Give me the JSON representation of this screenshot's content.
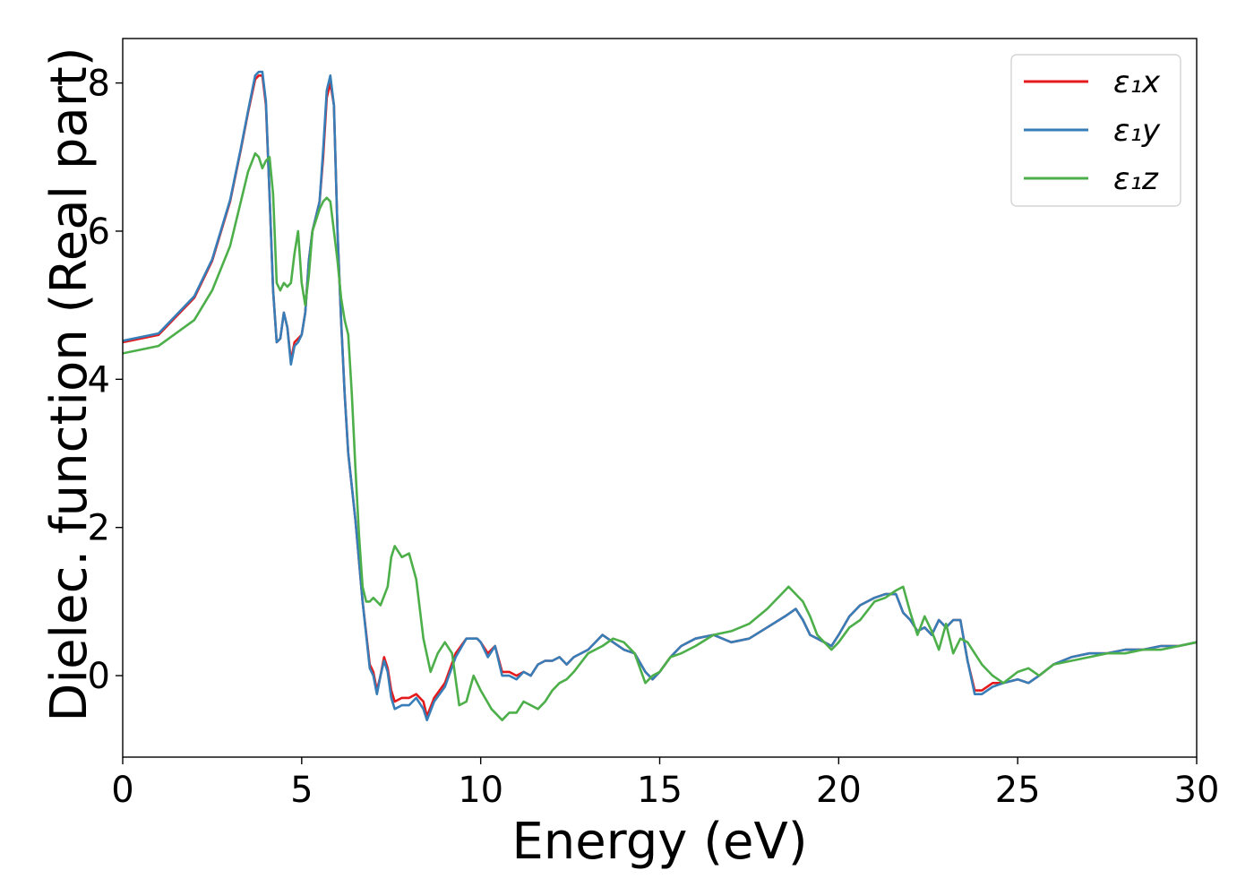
{
  "chart_data": {
    "type": "line",
    "title": "",
    "xlabel": "Energy (eV)",
    "ylabel": "Dielec. function (Real part)",
    "xlim": [
      0,
      30
    ],
    "ylim": [
      -1.1,
      8.6
    ],
    "xticks": [
      0,
      5,
      10,
      15,
      20,
      25,
      30
    ],
    "yticks": [
      0,
      2,
      4,
      6,
      8
    ],
    "grid": false,
    "legend": "top-right",
    "series": [
      {
        "name": "ε₁x",
        "color": "#e41a1c",
        "x": [
          0,
          1,
          2,
          2.5,
          3,
          3.3,
          3.5,
          3.7,
          3.8,
          3.9,
          4.0,
          4.1,
          4.2,
          4.3,
          4.4,
          4.5,
          4.6,
          4.7,
          4.8,
          4.9,
          5.0,
          5.1,
          5.2,
          5.3,
          5.5,
          5.6,
          5.7,
          5.8,
          5.9,
          6.0,
          6.1,
          6.2,
          6.3,
          6.5,
          6.7,
          6.9,
          7.0,
          7.1,
          7.2,
          7.3,
          7.4,
          7.5,
          7.6,
          7.8,
          8.0,
          8.2,
          8.4,
          8.5,
          8.7,
          9.0,
          9.3,
          9.6,
          9.9,
          10.0,
          10.2,
          10.4,
          10.6,
          10.8,
          11.0,
          11.2,
          11.4,
          11.6,
          11.8,
          12.0,
          12.2,
          12.4,
          12.6,
          13.0,
          13.4,
          13.7,
          14.0,
          14.3,
          14.6,
          14.8,
          15.0,
          15.3,
          15.6,
          16.0,
          16.5,
          17.0,
          17.5,
          18.0,
          18.5,
          18.8,
          19.0,
          19.2,
          19.4,
          19.6,
          19.8,
          20.0,
          20.3,
          20.6,
          21.0,
          21.3,
          21.6,
          21.8,
          22.0,
          22.2,
          22.4,
          22.6,
          22.8,
          23.0,
          23.2,
          23.4,
          23.6,
          23.8,
          24.0,
          24.3,
          24.6,
          25.0,
          25.3,
          25.6,
          26.0,
          26.5,
          27.0,
          27.5,
          28.0,
          28.5,
          29.0,
          29.5,
          30.0
        ],
        "y": [
          4.5,
          4.6,
          5.1,
          5.6,
          6.4,
          7.1,
          7.6,
          8.05,
          8.1,
          8.1,
          7.7,
          6.5,
          5.2,
          4.5,
          4.55,
          4.9,
          4.7,
          4.25,
          4.5,
          4.55,
          4.6,
          4.9,
          5.6,
          6.0,
          6.4,
          7.0,
          7.8,
          8.0,
          7.7,
          6.0,
          4.8,
          3.8,
          3.0,
          2.1,
          1.0,
          0.15,
          0.05,
          -0.2,
          0.0,
          0.25,
          0.1,
          -0.2,
          -0.35,
          -0.3,
          -0.3,
          -0.25,
          -0.35,
          -0.55,
          -0.3,
          -0.1,
          0.3,
          0.5,
          0.5,
          0.45,
          0.3,
          0.4,
          0.05,
          0.05,
          0.0,
          0.05,
          0.0,
          0.15,
          0.2,
          0.2,
          0.25,
          0.15,
          0.25,
          0.35,
          0.55,
          0.45,
          0.35,
          0.3,
          0.05,
          -0.05,
          0.05,
          0.25,
          0.4,
          0.5,
          0.55,
          0.45,
          0.5,
          0.65,
          0.8,
          0.9,
          0.75,
          0.55,
          0.5,
          0.45,
          0.4,
          0.55,
          0.8,
          0.95,
          1.05,
          1.1,
          1.1,
          0.85,
          0.75,
          0.6,
          0.65,
          0.55,
          0.75,
          0.65,
          0.75,
          0.75,
          0.2,
          -0.2,
          -0.2,
          -0.1,
          -0.1,
          -0.05,
          -0.1,
          0.0,
          0.15,
          0.25,
          0.3,
          0.3,
          0.35,
          0.35,
          0.4,
          0.4,
          0.45
        ]
      },
      {
        "name": "ε₁y",
        "color": "#377eb8",
        "x": [
          0,
          1,
          2,
          2.5,
          3,
          3.3,
          3.5,
          3.7,
          3.8,
          3.9,
          4.0,
          4.1,
          4.2,
          4.3,
          4.4,
          4.5,
          4.6,
          4.7,
          4.8,
          4.9,
          5.0,
          5.1,
          5.2,
          5.3,
          5.5,
          5.6,
          5.7,
          5.8,
          5.9,
          6.0,
          6.1,
          6.2,
          6.3,
          6.5,
          6.7,
          6.9,
          7.0,
          7.1,
          7.2,
          7.3,
          7.4,
          7.5,
          7.6,
          7.8,
          8.0,
          8.2,
          8.4,
          8.5,
          8.7,
          9.0,
          9.3,
          9.6,
          9.9,
          10.0,
          10.2,
          10.4,
          10.6,
          10.8,
          11.0,
          11.2,
          11.4,
          11.6,
          11.8,
          12.0,
          12.2,
          12.4,
          12.6,
          13.0,
          13.4,
          13.7,
          14.0,
          14.3,
          14.6,
          14.8,
          15.0,
          15.3,
          15.6,
          16.0,
          16.5,
          17.0,
          17.5,
          18.0,
          18.5,
          18.8,
          19.0,
          19.2,
          19.4,
          19.6,
          19.8,
          20.0,
          20.3,
          20.6,
          21.0,
          21.3,
          21.6,
          21.8,
          22.0,
          22.2,
          22.4,
          22.6,
          22.8,
          23.0,
          23.2,
          23.4,
          23.6,
          23.8,
          24.0,
          24.3,
          24.6,
          25.0,
          25.3,
          25.6,
          26.0,
          26.5,
          27.0,
          27.5,
          28.0,
          28.5,
          29.0,
          29.5,
          30.0
        ],
        "y": [
          4.52,
          4.62,
          5.12,
          5.62,
          6.42,
          7.12,
          7.62,
          8.1,
          8.15,
          8.15,
          7.75,
          6.5,
          5.2,
          4.5,
          4.55,
          4.9,
          4.7,
          4.2,
          4.45,
          4.5,
          4.6,
          4.9,
          5.6,
          6.0,
          6.4,
          7.1,
          7.9,
          8.1,
          7.7,
          6.0,
          4.8,
          3.8,
          3.0,
          2.1,
          1.0,
          0.1,
          0.0,
          -0.25,
          0.0,
          0.2,
          0.05,
          -0.3,
          -0.45,
          -0.4,
          -0.4,
          -0.3,
          -0.45,
          -0.6,
          -0.35,
          -0.15,
          0.25,
          0.5,
          0.5,
          0.45,
          0.25,
          0.4,
          0.0,
          0.0,
          -0.05,
          0.05,
          0.0,
          0.15,
          0.2,
          0.2,
          0.25,
          0.15,
          0.25,
          0.35,
          0.55,
          0.45,
          0.35,
          0.3,
          0.05,
          -0.05,
          0.05,
          0.25,
          0.4,
          0.5,
          0.55,
          0.45,
          0.5,
          0.65,
          0.8,
          0.9,
          0.75,
          0.55,
          0.5,
          0.45,
          0.4,
          0.55,
          0.8,
          0.95,
          1.05,
          1.1,
          1.1,
          0.85,
          0.75,
          0.6,
          0.65,
          0.55,
          0.75,
          0.65,
          0.75,
          0.75,
          0.2,
          -0.25,
          -0.25,
          -0.15,
          -0.1,
          -0.05,
          -0.1,
          0.0,
          0.15,
          0.25,
          0.3,
          0.3,
          0.35,
          0.35,
          0.4,
          0.4,
          0.45
        ]
      },
      {
        "name": "ε₁z",
        "color": "#4daf4a",
        "x": [
          0,
          1,
          2,
          2.5,
          3,
          3.3,
          3.5,
          3.7,
          3.8,
          3.9,
          4.0,
          4.1,
          4.2,
          4.3,
          4.4,
          4.5,
          4.6,
          4.7,
          4.8,
          4.9,
          5.0,
          5.1,
          5.2,
          5.3,
          5.5,
          5.6,
          5.7,
          5.8,
          5.9,
          6.0,
          6.1,
          6.2,
          6.3,
          6.4,
          6.5,
          6.6,
          6.7,
          6.8,
          6.9,
          7.0,
          7.2,
          7.4,
          7.5,
          7.6,
          7.8,
          8.0,
          8.2,
          8.4,
          8.6,
          8.8,
          9.0,
          9.2,
          9.4,
          9.6,
          9.8,
          10.0,
          10.3,
          10.6,
          10.8,
          11.0,
          11.2,
          11.4,
          11.6,
          11.8,
          12.0,
          12.2,
          12.4,
          12.6,
          13.0,
          13.4,
          13.7,
          14.0,
          14.3,
          14.6,
          14.8,
          15.0,
          15.3,
          15.6,
          16.0,
          16.5,
          17.0,
          17.5,
          18.0,
          18.4,
          18.6,
          18.8,
          19.0,
          19.2,
          19.4,
          19.6,
          19.8,
          20.0,
          20.3,
          20.6,
          21.0,
          21.3,
          21.6,
          21.8,
          22.0,
          22.2,
          22.4,
          22.6,
          22.8,
          23.0,
          23.2,
          23.4,
          23.6,
          23.8,
          24.0,
          24.3,
          24.6,
          25.0,
          25.3,
          25.6,
          26.0,
          26.5,
          27.0,
          27.5,
          28.0,
          28.5,
          29.0,
          29.5,
          30.0
        ],
        "y": [
          4.35,
          4.45,
          4.8,
          5.2,
          5.8,
          6.4,
          6.8,
          7.05,
          7.0,
          6.85,
          6.95,
          7.0,
          6.5,
          5.3,
          5.2,
          5.3,
          5.25,
          5.3,
          5.7,
          6.0,
          5.3,
          5.0,
          5.4,
          6.0,
          6.3,
          6.4,
          6.45,
          6.4,
          6.0,
          5.6,
          5.1,
          4.8,
          4.6,
          3.8,
          2.8,
          1.9,
          1.2,
          1.0,
          1.0,
          1.05,
          0.95,
          1.2,
          1.6,
          1.75,
          1.6,
          1.65,
          1.3,
          0.5,
          0.05,
          0.3,
          0.45,
          0.3,
          -0.4,
          -0.35,
          0.0,
          -0.2,
          -0.45,
          -0.6,
          -0.5,
          -0.5,
          -0.35,
          -0.4,
          -0.45,
          -0.35,
          -0.2,
          -0.1,
          -0.05,
          0.05,
          0.3,
          0.4,
          0.5,
          0.45,
          0.3,
          -0.1,
          0.0,
          0.05,
          0.25,
          0.3,
          0.4,
          0.55,
          0.6,
          0.7,
          0.9,
          1.1,
          1.2,
          1.1,
          1.0,
          0.8,
          0.55,
          0.45,
          0.35,
          0.45,
          0.65,
          0.75,
          1.0,
          1.05,
          1.15,
          1.2,
          0.85,
          0.55,
          0.8,
          0.6,
          0.35,
          0.7,
          0.3,
          0.5,
          0.45,
          0.3,
          0.15,
          0.0,
          -0.1,
          0.05,
          0.1,
          0.0,
          0.15,
          0.2,
          0.25,
          0.3,
          0.3,
          0.35,
          0.35,
          0.4,
          0.45
        ]
      }
    ]
  }
}
